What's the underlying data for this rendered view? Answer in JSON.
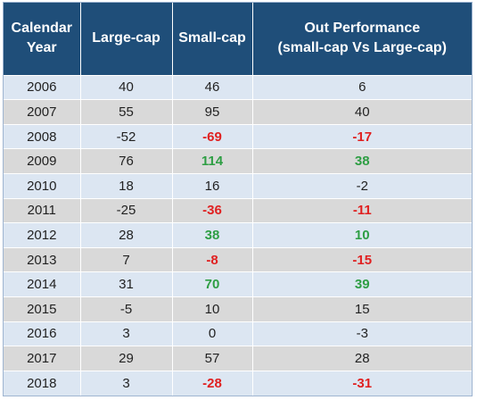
{
  "chart_data": {
    "type": "table",
    "columns": [
      "Calendar Year",
      "Large-cap",
      "Small-cap",
      "Out Performance (small-cap Vs Large-cap)"
    ],
    "header": {
      "year_line1": "Calendar",
      "year_line2": "Year",
      "large": "Large-cap",
      "small": "Small-cap",
      "out_line1": "Out Performance",
      "out_line2": "(small-cap Vs Large-cap)"
    },
    "rows": [
      {
        "year": "2006",
        "large": "40",
        "small": "46",
        "out": "6",
        "small_style": "normal",
        "out_style": "normal"
      },
      {
        "year": "2007",
        "large": "55",
        "small": "95",
        "out": "40",
        "small_style": "normal",
        "out_style": "normal"
      },
      {
        "year": "2008",
        "large": "-52",
        "small": "-69",
        "out": "-17",
        "small_style": "neg",
        "out_style": "neg"
      },
      {
        "year": "2009",
        "large": "76",
        "small": "114",
        "out": "38",
        "small_style": "pos",
        "out_style": "pos"
      },
      {
        "year": "2010",
        "large": "18",
        "small": "16",
        "out": "-2",
        "small_style": "normal",
        "out_style": "normal"
      },
      {
        "year": "2011",
        "large": "-25",
        "small": "-36",
        "out": "-11",
        "small_style": "neg",
        "out_style": "neg"
      },
      {
        "year": "2012",
        "large": "28",
        "small": "38",
        "out": "10",
        "small_style": "pos",
        "out_style": "pos"
      },
      {
        "year": "2013",
        "large": "7",
        "small": "-8",
        "out": "-15",
        "small_style": "neg",
        "out_style": "neg"
      },
      {
        "year": "2014",
        "large": "31",
        "small": "70",
        "out": "39",
        "small_style": "pos",
        "out_style": "pos"
      },
      {
        "year": "2015",
        "large": "-5",
        "small": "10",
        "out": "15",
        "small_style": "normal",
        "out_style": "normal"
      },
      {
        "year": "2016",
        "large": "3",
        "small": "0",
        "out": "-3",
        "small_style": "normal",
        "out_style": "normal"
      },
      {
        "year": "2017",
        "large": "29",
        "small": "57",
        "out": "28",
        "small_style": "normal",
        "out_style": "normal"
      },
      {
        "year": "2018",
        "large": "3",
        "small": "-28",
        "out": "-31",
        "small_style": "neg",
        "out_style": "neg"
      }
    ],
    "colors": {
      "header_bg": "#1f4e79",
      "header_text": "#ffffff",
      "row_odd": "#dce6f2",
      "row_even": "#d9d9d9",
      "negative": "#e02020",
      "positive": "#2e9e44"
    }
  }
}
